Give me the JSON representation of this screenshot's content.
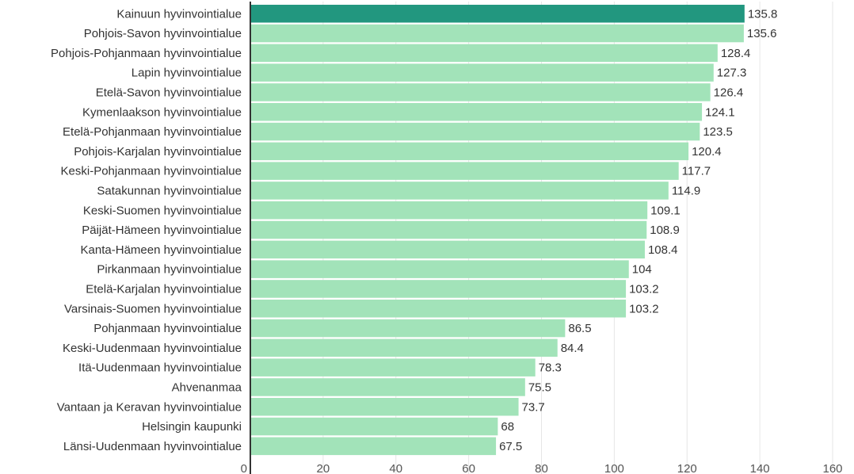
{
  "chart_data": {
    "type": "bar",
    "orientation": "horizontal",
    "categories": [
      "Kainuun hyvinvointialue",
      "Pohjois-Savon hyvinvointialue",
      "Pohjois-Pohjanmaan hyvinvointialue",
      "Lapin hyvinvointialue",
      "Etelä-Savon hyvinvointialue",
      "Kymenlaakson hyvinvointialue",
      "Etelä-Pohjanmaan hyvinvointialue",
      "Pohjois-Karjalan hyvinvointialue",
      "Keski-Pohjanmaan hyvinvointialue",
      "Satakunnan hyvinvointialue",
      "Keski-Suomen hyvinvointialue",
      "Päijät-Hämeen hyvinvointialue",
      "Kanta-Hämeen hyvinvointialue",
      "Pirkanmaan hyvinvointialue",
      "Etelä-Karjalan hyvinvointialue",
      "Varsinais-Suomen hyvinvointialue",
      "Pohjanmaan hyvinvointialue",
      "Keski-Uudenmaan hyvinvointialue",
      "Itä-Uudenmaan hyvinvointialue",
      "Ahvenanmaa",
      "Vantaan ja Keravan hyvinvointialue",
      "Helsingin kaupunki",
      "Länsi-Uudenmaan hyvinvointialue"
    ],
    "values": [
      135.8,
      135.6,
      128.4,
      127.3,
      126.4,
      124.1,
      123.5,
      120.4,
      117.7,
      114.9,
      109.1,
      108.9,
      108.4,
      104,
      103.2,
      103.2,
      86.5,
      84.4,
      78.3,
      75.5,
      73.7,
      68,
      67.5
    ],
    "value_labels": [
      "135.8",
      "135.6",
      "128.4",
      "127.3",
      "126.4",
      "124.1",
      "123.5",
      "120.4",
      "117.7",
      "114.9",
      "109.1",
      "108.9",
      "108.4",
      "104",
      "103.2",
      "103.2",
      "86.5",
      "84.4",
      "78.3",
      "75.5",
      "73.7",
      "68",
      "67.5"
    ],
    "highlighted_index": 0,
    "xlim": [
      0,
      160
    ],
    "x_ticks": [
      "0",
      "20",
      "40",
      "60",
      "80",
      "100",
      "120",
      "140",
      "160"
    ],
    "grid": true,
    "colors": {
      "bar": "#a2e3b9",
      "highlight": "#22977f",
      "grid": "#e6e6e6",
      "axis": "#333333"
    },
    "title": "",
    "xlabel": "",
    "ylabel": ""
  }
}
